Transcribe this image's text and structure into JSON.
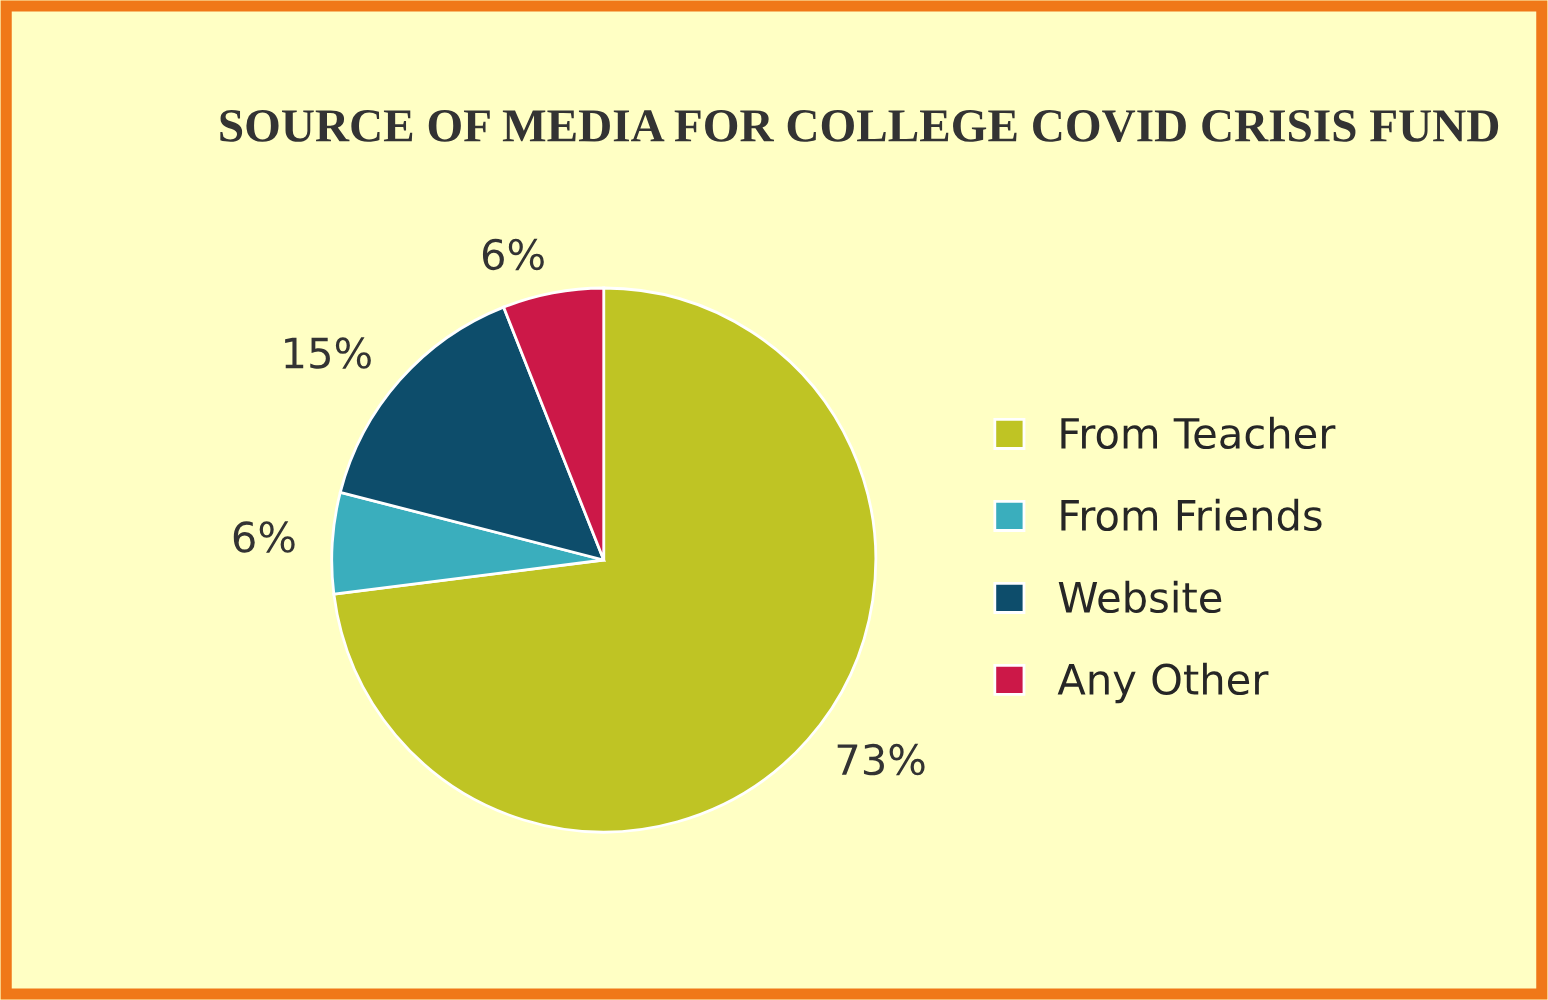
{
  "chart_data": {
    "type": "pie",
    "title": "SOURCE OF MEDIA FOR COLLEGE COVID CRISIS FUND",
    "categories": [
      "From Teacher",
      "From Friends",
      "Website",
      "Any Other"
    ],
    "values": [
      73,
      6,
      15,
      6
    ],
    "value_labels": [
      "73%",
      "6%",
      "15%",
      "6%"
    ],
    "colors": [
      "#bfc424",
      "#3aaebd",
      "#0d4d6b",
      "#cc1848"
    ],
    "legend": "right"
  }
}
